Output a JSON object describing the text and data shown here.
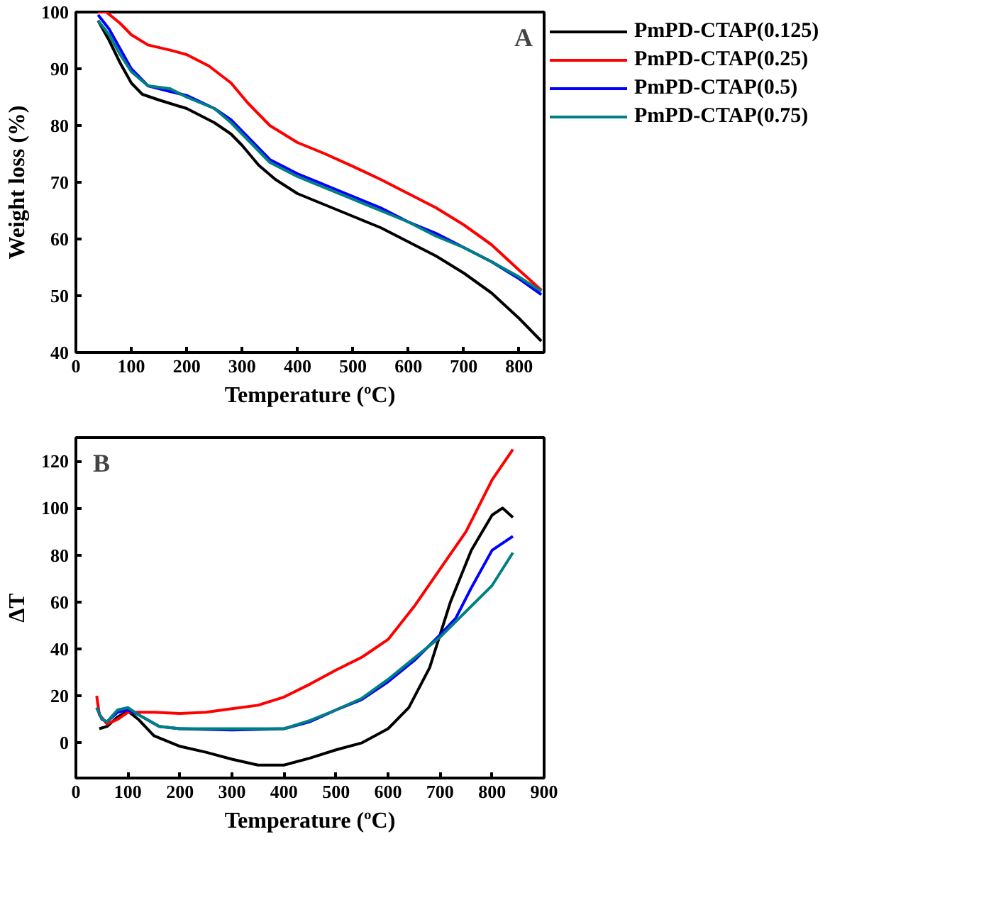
{
  "chart_data": [
    {
      "type": "line",
      "xlabel": "Temperature (ºC)",
      "ylabel": "Weight loss (%)",
      "xlim": [
        0,
        845
      ],
      "ylim": [
        40,
        100
      ],
      "xticks": [
        0,
        100,
        200,
        300,
        400,
        500,
        600,
        700,
        800
      ],
      "yticks": [
        40,
        50,
        60,
        70,
        80,
        90,
        100
      ],
      "legend": "right",
      "grid": false,
      "annotations": [
        "A"
      ],
      "series": [
        {
          "name": "PmPD-CTAP(0.125)",
          "color": "#000000",
          "x": [
            40,
            60,
            80,
            100,
            120,
            150,
            200,
            250,
            280,
            300,
            330,
            360,
            400,
            450,
            500,
            550,
            600,
            650,
            700,
            750,
            800,
            840
          ],
          "values": [
            98.5,
            95,
            91,
            87.5,
            85.5,
            84.5,
            83,
            80.5,
            78.5,
            76.5,
            73,
            70.5,
            68,
            66,
            64,
            62,
            59.5,
            57,
            54,
            50.5,
            46,
            42
          ]
        },
        {
          "name": "PmPD-CTAP(0.25)",
          "color": "#ff0000",
          "x": [
            40,
            55,
            80,
            100,
            130,
            170,
            200,
            240,
            280,
            310,
            350,
            400,
            450,
            500,
            550,
            600,
            650,
            700,
            750,
            800,
            840
          ],
          "values": [
            100,
            100,
            98,
            96,
            94.2,
            93.3,
            92.5,
            90.5,
            87.5,
            84,
            80,
            77,
            75,
            72.8,
            70.5,
            68,
            65.5,
            62.5,
            59,
            54.5,
            51
          ]
        },
        {
          "name": "PmPD-CTAP(0.5)",
          "color": "#0000ff",
          "x": [
            40,
            60,
            80,
            100,
            130,
            170,
            200,
            250,
            280,
            310,
            350,
            400,
            450,
            500,
            550,
            600,
            650,
            700,
            750,
            800,
            840
          ],
          "values": [
            99.5,
            97,
            93.5,
            90,
            87,
            86,
            85.3,
            83,
            81,
            78,
            74,
            71.5,
            69.5,
            67.5,
            65.5,
            63,
            61,
            58.5,
            56,
            53,
            50.2
          ]
        },
        {
          "name": "PmPD-CTAP(0.75)",
          "color": "#008080",
          "x": [
            40,
            60,
            80,
            100,
            130,
            170,
            200,
            250,
            280,
            310,
            350,
            400,
            450,
            500,
            550,
            600,
            650,
            700,
            750,
            800,
            840
          ],
          "values": [
            98.5,
            96,
            92.5,
            89.5,
            87,
            86.5,
            85,
            83,
            80.5,
            77.5,
            73.5,
            71,
            69,
            67,
            65,
            63,
            60.5,
            58.5,
            56,
            53.3,
            50.8
          ]
        }
      ]
    },
    {
      "type": "line",
      "xlabel": "Temperature (ºC)",
      "ylabel": "ΔT",
      "xlim": [
        0,
        900
      ],
      "ylim": [
        -15,
        130
      ],
      "xticks": [
        0,
        100,
        200,
        300,
        400,
        500,
        600,
        700,
        800,
        900
      ],
      "yticks": [
        0,
        20,
        40,
        60,
        80,
        100,
        120
      ],
      "grid": false,
      "annotations": [
        "B"
      ],
      "series": [
        {
          "color": "#000000",
          "x": [
            45,
            60,
            80,
            100,
            120,
            150,
            200,
            250,
            300,
            350,
            400,
            450,
            500,
            550,
            600,
            640,
            680,
            720,
            760,
            800,
            820,
            840
          ],
          "values": [
            6,
            7,
            11,
            13.5,
            10,
            3,
            -1.5,
            -4,
            -7,
            -9.5,
            -9.5,
            -6.5,
            -3,
            0,
            6,
            15,
            32,
            60,
            82,
            97,
            100,
            96
          ]
        },
        {
          "color": "#ff0000",
          "x": [
            40,
            45,
            60,
            80,
            100,
            150,
            200,
            250,
            300,
            350,
            400,
            450,
            500,
            550,
            600,
            650,
            700,
            750,
            800,
            840
          ],
          "values": [
            20,
            12,
            8,
            10,
            13,
            13,
            12.5,
            13,
            14.5,
            16,
            19.5,
            25,
            31,
            36.5,
            44,
            58,
            74,
            90,
            112,
            125
          ]
        },
        {
          "color": "#0000ff",
          "x": [
            40,
            50,
            60,
            80,
            100,
            120,
            160,
            200,
            300,
            400,
            450,
            500,
            550,
            600,
            650,
            700,
            730,
            760,
            800,
            840
          ],
          "values": [
            15,
            10,
            9,
            13,
            14,
            12,
            7,
            6,
            5.5,
            6,
            9,
            14,
            18.5,
            26,
            35,
            46,
            53,
            66,
            82,
            88
          ]
        },
        {
          "color": "#008080",
          "x": [
            40,
            50,
            60,
            80,
            100,
            120,
            160,
            200,
            300,
            400,
            450,
            500,
            550,
            600,
            650,
            700,
            750,
            800,
            840
          ],
          "values": [
            15,
            10,
            9,
            14,
            15,
            12,
            7,
            6,
            6,
            6,
            9.5,
            14,
            19,
            27,
            36,
            45,
            56,
            67,
            81
          ]
        }
      ]
    }
  ]
}
